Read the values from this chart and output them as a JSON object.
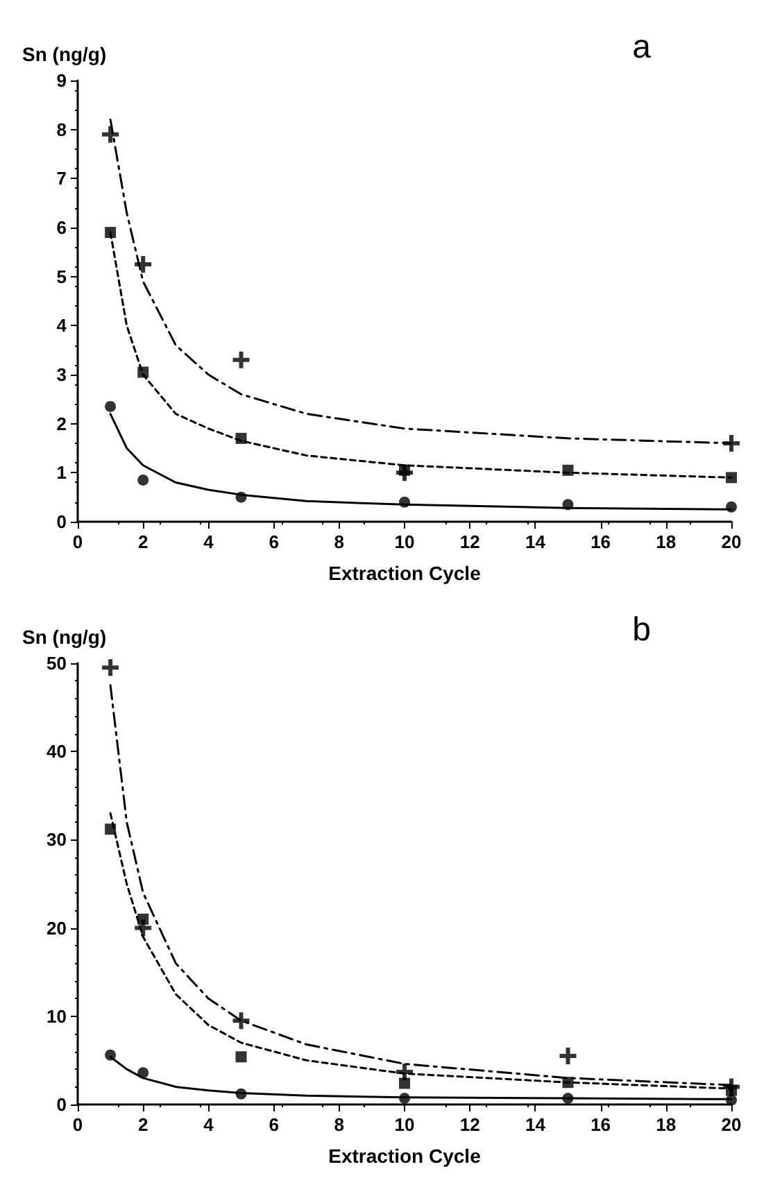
{
  "chart_data": [
    {
      "type": "scatter",
      "xlabel": "Extraction Cycle",
      "ylabel": "Sn (ng/g)",
      "annotations": [
        "a"
      ],
      "xlim": [
        0,
        20
      ],
      "xticks": [
        0,
        2,
        4,
        6,
        8,
        10,
        12,
        14,
        16,
        18,
        20
      ],
      "ylim": [
        0,
        9
      ],
      "yticks": [
        0,
        1,
        2,
        3,
        4,
        5,
        6,
        7,
        8,
        9
      ],
      "series": [
        {
          "color": "#000000",
          "marker": "cross",
          "x": [
            1,
            2,
            5,
            10,
            20
          ],
          "values": [
            7.9,
            5.25,
            3.3,
            1.0,
            1.6
          ]
        },
        {
          "color": "#000000",
          "marker": "square",
          "x": [
            1,
            2,
            5,
            10,
            15,
            20
          ],
          "values": [
            5.9,
            3.05,
            1.7,
            1.05,
            1.05,
            0.9
          ]
        },
        {
          "color": "#000000",
          "marker": "circle",
          "x": [
            1,
            2,
            5,
            10,
            15,
            20
          ],
          "values": [
            2.35,
            0.85,
            0.5,
            0.4,
            0.35,
            0.3
          ]
        },
        {
          "type": "line",
          "color": "#000000",
          "marker": "none",
          "line_style": "dashed",
          "x": [
            1,
            1.5,
            2,
            3,
            4,
            5,
            7,
            10,
            15,
            20
          ],
          "values": [
            8.2,
            6.3,
            4.9,
            3.6,
            3.0,
            2.6,
            2.2,
            1.9,
            1.7,
            1.6
          ]
        },
        {
          "type": "line",
          "color": "#000000",
          "marker": "none",
          "line_style": "dotted",
          "x": [
            1,
            1.5,
            2,
            3,
            4,
            5,
            7,
            10,
            15,
            20
          ],
          "values": [
            5.9,
            4.0,
            3.0,
            2.2,
            1.9,
            1.65,
            1.35,
            1.15,
            1.0,
            0.9
          ]
        },
        {
          "type": "line",
          "color": "#000000",
          "marker": "none",
          "line_style": "solid",
          "x": [
            1,
            1.5,
            2,
            3,
            4,
            5,
            7,
            10,
            15,
            20
          ],
          "values": [
            2.2,
            1.5,
            1.15,
            0.8,
            0.65,
            0.55,
            0.42,
            0.35,
            0.28,
            0.25
          ]
        }
      ]
    },
    {
      "type": "scatter",
      "xlabel": "Extraction Cycle",
      "ylabel": "Sn (ng/g)",
      "annotations": [
        "b"
      ],
      "xlim": [
        0,
        20
      ],
      "xticks": [
        0,
        2,
        4,
        6,
        8,
        10,
        12,
        14,
        16,
        18,
        20
      ],
      "ylim": [
        0,
        50
      ],
      "yticks": [
        0,
        10,
        20,
        30,
        40,
        50
      ],
      "series": [
        {
          "color": "#000000",
          "marker": "cross",
          "x": [
            1,
            2,
            5,
            10,
            15,
            20
          ],
          "values": [
            49.5,
            20,
            9.5,
            3.7,
            5.5,
            2.0
          ]
        },
        {
          "color": "#000000",
          "marker": "square",
          "x": [
            1,
            2,
            5,
            10,
            15,
            20
          ],
          "values": [
            31.2,
            21,
            5.4,
            2.4,
            2.5,
            1.6
          ]
        },
        {
          "color": "#000000",
          "marker": "circle",
          "x": [
            1,
            2,
            5,
            10,
            15,
            20
          ],
          "values": [
            5.6,
            3.6,
            1.2,
            0.7,
            0.7,
            0.5
          ]
        },
        {
          "type": "line",
          "color": "#000000",
          "marker": "none",
          "line_style": "dashed",
          "x": [
            1,
            1.5,
            2,
            3,
            4,
            5,
            7,
            10,
            15,
            20
          ],
          "values": [
            47.5,
            32,
            24,
            16,
            12,
            9.5,
            6.8,
            4.6,
            3.0,
            2.2
          ]
        },
        {
          "type": "line",
          "color": "#000000",
          "marker": "none",
          "line_style": "dotted",
          "x": [
            1,
            1.5,
            2,
            3,
            4,
            5,
            7,
            10,
            15,
            20
          ],
          "values": [
            33,
            25,
            19,
            12.5,
            9,
            7,
            5,
            3.5,
            2.5,
            1.8
          ]
        },
        {
          "type": "line",
          "color": "#000000",
          "marker": "none",
          "line_style": "solid",
          "x": [
            1,
            1.5,
            2,
            3,
            4,
            5,
            7,
            10,
            15,
            20
          ],
          "values": [
            5.4,
            4,
            3,
            2,
            1.6,
            1.3,
            1.0,
            0.8,
            0.7,
            0.6
          ]
        }
      ]
    }
  ]
}
